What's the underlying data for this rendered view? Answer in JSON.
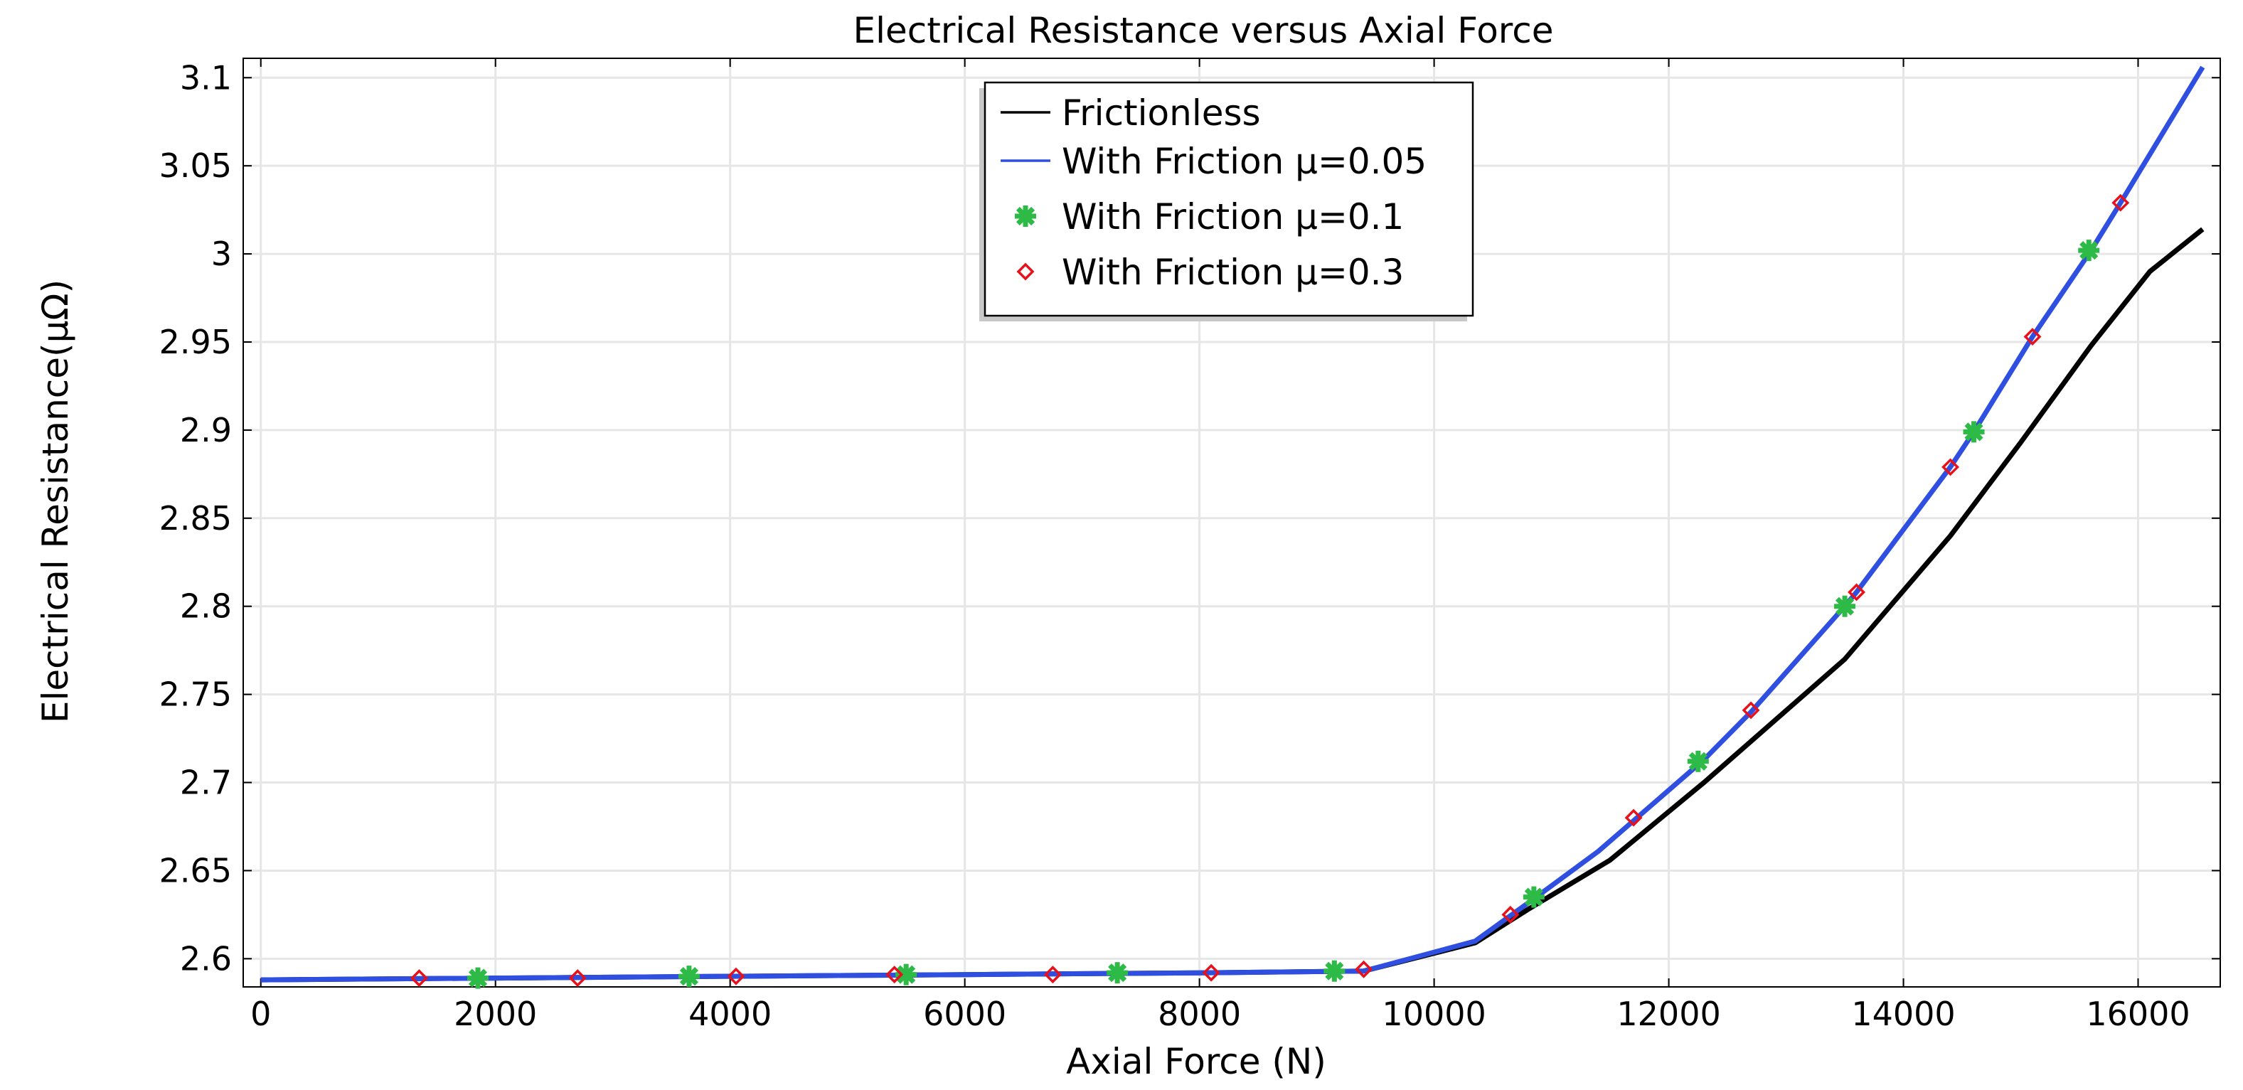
{
  "chart_data": {
    "type": "line",
    "title": "Electrical Resistance versus Axial Force",
    "xlabel": "Axial Force (N)",
    "ylabel": "Electrical Resistance(μΩ)",
    "xlim": [
      -150,
      16700
    ],
    "ylim": [
      2.584,
      3.111
    ],
    "x_ticks": [
      0,
      2000,
      4000,
      6000,
      8000,
      10000,
      12000,
      14000,
      16000
    ],
    "x_tick_labels": [
      "0",
      "2000",
      "4000",
      "6000",
      "8000",
      "10000",
      "12000",
      "14000",
      "16000"
    ],
    "y_ticks": [
      2.6,
      2.65,
      2.7,
      2.75,
      2.8,
      2.85,
      2.9,
      2.95,
      3.0,
      3.05,
      3.1
    ],
    "y_tick_labels": [
      "2.6",
      "2.65",
      "2.7",
      "2.75",
      "2.8",
      "2.85",
      "2.9",
      "2.95",
      "3",
      "3.05",
      "3.1"
    ],
    "grid": true,
    "legend_position": "top-center",
    "series": [
      {
        "name": "Frictionless",
        "style": "line",
        "color": "#000000",
        "points": [
          [
            0,
            2.588
          ],
          [
            2000,
            2.589
          ],
          [
            4000,
            2.59
          ],
          [
            6000,
            2.591
          ],
          [
            8000,
            2.592
          ],
          [
            9400,
            2.593
          ],
          [
            10350,
            2.609
          ],
          [
            10800,
            2.628
          ],
          [
            11500,
            2.656
          ],
          [
            12300,
            2.7
          ],
          [
            13500,
            2.77
          ],
          [
            14400,
            2.84
          ],
          [
            15000,
            2.893
          ],
          [
            15600,
            2.948
          ],
          [
            16100,
            2.99
          ],
          [
            16550,
            3.014
          ]
        ]
      },
      {
        "name": "With Friction μ=0.05",
        "style": "line",
        "color": "#2f4fe0",
        "points": [
          [
            0,
            2.588
          ],
          [
            2000,
            2.589
          ],
          [
            4000,
            2.59
          ],
          [
            6000,
            2.591
          ],
          [
            8000,
            2.592
          ],
          [
            9400,
            2.593
          ],
          [
            10350,
            2.61
          ],
          [
            10850,
            2.634
          ],
          [
            11400,
            2.661
          ],
          [
            12300,
            2.713
          ],
          [
            12700,
            2.74
          ],
          [
            13500,
            2.8
          ],
          [
            13600,
            2.808
          ],
          [
            14400,
            2.879
          ],
          [
            14600,
            2.899
          ],
          [
            15100,
            2.953
          ],
          [
            15600,
            3.002
          ],
          [
            15850,
            3.029
          ],
          [
            16550,
            3.106
          ]
        ]
      },
      {
        "name": "With Friction μ=0.1",
        "style": "markers",
        "marker": "asterisk",
        "color": "#2dba46",
        "points": [
          [
            1850,
            2.589
          ],
          [
            3650,
            2.59
          ],
          [
            5500,
            2.591
          ],
          [
            7300,
            2.592
          ],
          [
            9150,
            2.593
          ],
          [
            10850,
            2.635
          ],
          [
            12250,
            2.712
          ],
          [
            13500,
            2.8
          ],
          [
            14600,
            2.899
          ],
          [
            15580,
            3.002
          ]
        ]
      },
      {
        "name": "With Friction μ=0.3",
        "style": "markers",
        "marker": "diamond",
        "color": "#e8101a",
        "points": [
          [
            1350,
            2.589
          ],
          [
            2700,
            2.589
          ],
          [
            4050,
            2.59
          ],
          [
            5400,
            2.591
          ],
          [
            6750,
            2.591
          ],
          [
            8100,
            2.592
          ],
          [
            9400,
            2.594
          ],
          [
            10650,
            2.625
          ],
          [
            11700,
            2.68
          ],
          [
            12700,
            2.741
          ],
          [
            13600,
            2.808
          ],
          [
            14400,
            2.879
          ],
          [
            15100,
            2.953
          ],
          [
            15850,
            3.029
          ]
        ]
      }
    ]
  }
}
